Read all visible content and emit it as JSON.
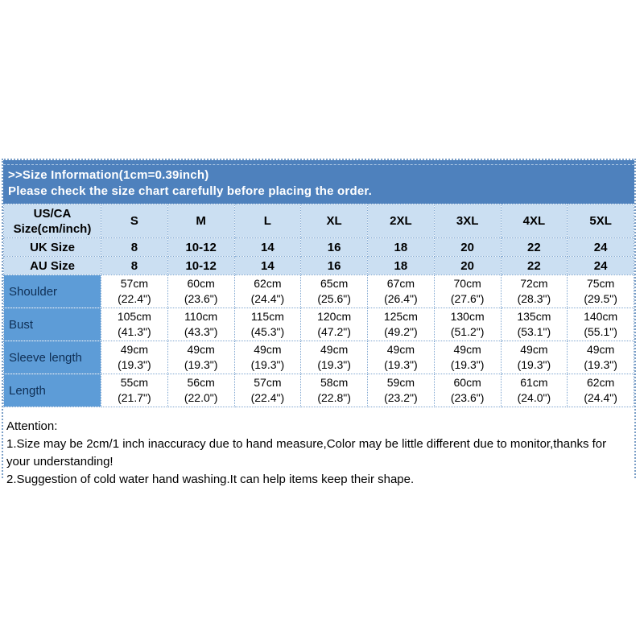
{
  "header": {
    "title": ">>Size Information(1cm=0.39inch)",
    "subtitle": "Please check the size chart carefully before placing the order."
  },
  "table": {
    "corner": {
      "line1": "US/CA",
      "line2": "Size(cm/inch)"
    },
    "sizes": [
      "S",
      "M",
      "L",
      "XL",
      "2XL",
      "3XL",
      "4XL",
      "5XL"
    ],
    "uk": {
      "label": "UK Size",
      "values": [
        "8",
        "10-12",
        "14",
        "16",
        "18",
        "20",
        "22",
        "24"
      ]
    },
    "au": {
      "label": "AU Size",
      "values": [
        "8",
        "10-12",
        "14",
        "16",
        "18",
        "20",
        "22",
        "24"
      ]
    },
    "measurements": [
      {
        "label": "Shoulder",
        "cm": [
          "57cm",
          "60cm",
          "62cm",
          "65cm",
          "67cm",
          "70cm",
          "72cm",
          "75cm"
        ],
        "inch": [
          "(22.4\")",
          "(23.6\")",
          "(24.4\")",
          "(25.6\")",
          "(26.4\")",
          "(27.6\")",
          "(28.3\")",
          "(29.5\")"
        ]
      },
      {
        "label": "Bust",
        "cm": [
          "105cm",
          "110cm",
          "115cm",
          "120cm",
          "125cm",
          "130cm",
          "135cm",
          "140cm"
        ],
        "inch": [
          "(41.3\")",
          "(43.3\")",
          "(45.3\")",
          "(47.2\")",
          "(49.2\")",
          "(51.2\")",
          "(53.1\")",
          "(55.1\")"
        ]
      },
      {
        "label": "Sleeve length",
        "cm": [
          "49cm",
          "49cm",
          "49cm",
          "49cm",
          "49cm",
          "49cm",
          "49cm",
          "49cm"
        ],
        "inch": [
          "(19.3\")",
          "(19.3\")",
          "(19.3\")",
          "(19.3\")",
          "(19.3\")",
          "(19.3\")",
          "(19.3\")",
          "(19.3\")"
        ]
      },
      {
        "label": "Length",
        "cm": [
          "55cm",
          "56cm",
          "57cm",
          "58cm",
          "59cm",
          "60cm",
          "61cm",
          "62cm"
        ],
        "inch": [
          "(21.7\")",
          "(22.0\")",
          "(22.4\")",
          "(22.8\")",
          "(23.2\")",
          "(23.6\")",
          "(24.0\")",
          "(24.4\")"
        ]
      }
    ]
  },
  "attention": {
    "heading": "Attention:",
    "line1": "1.Size may be 2cm/1 inch inaccuracy due to hand measure,Color may be little different due to monitor,thanks for your understanding!",
    "line2": "2.Suggestion of cold water hand washing.It can help items keep their shape."
  },
  "colors": {
    "band_blue": "#4e81bd",
    "header_cell_blue": "#cbdff2",
    "label_cell_blue": "#5d9cd7",
    "dotted_border": "#7fa6d0"
  }
}
